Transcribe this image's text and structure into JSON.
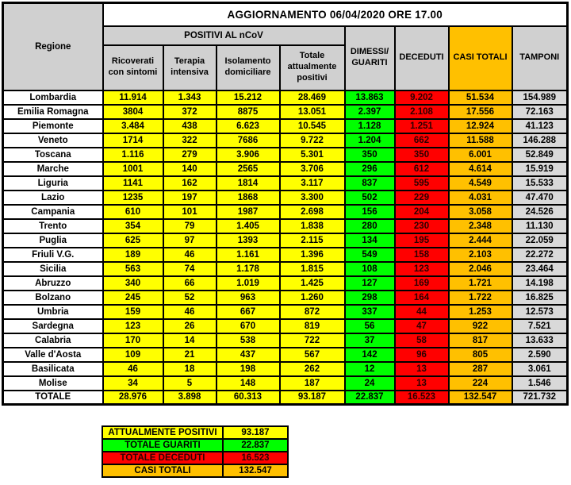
{
  "colors": {
    "yellow": "#ffff00",
    "green": "#00ff00",
    "red": "#ff0000",
    "orange": "#ffc000",
    "tamponi_gray": "#d9d9d9",
    "header_gray": "#d0d0d0",
    "red_cell_text": "#2b0000",
    "border": "#000000"
  },
  "chart_data": {
    "type": "table",
    "title": "AGGIORNAMENTO 06/04/2020 ORE 17.00",
    "region_column_header": "Regione",
    "group_header": "POSITIVI AL nCoV",
    "columns": [
      "Ricoverati con sintomi",
      "Terapia intensiva",
      "Isolamento domiciliare",
      "Totale attualmente positivi",
      "DIMESSI/ GUARITI",
      "DECEDUTI",
      "CASI TOTALI",
      "TAMPONI"
    ],
    "column_colors": [
      "yellow",
      "yellow",
      "yellow",
      "yellow",
      "green",
      "red",
      "orange",
      "gray"
    ],
    "rows": [
      {
        "region": "Lombardia",
        "values": [
          "11.914",
          "1.343",
          "15.212",
          "28.469",
          "13.863",
          "9.202",
          "51.534",
          "154.989"
        ]
      },
      {
        "region": "Emilia Romagna",
        "values": [
          "3804",
          "372",
          "8875",
          "13.051",
          "2.397",
          "2.108",
          "17.556",
          "72.163"
        ]
      },
      {
        "region": "Piemonte",
        "values": [
          "3.484",
          "438",
          "6.623",
          "10.545",
          "1.128",
          "1.251",
          "12.924",
          "41.123"
        ]
      },
      {
        "region": "Veneto",
        "values": [
          "1714",
          "322",
          "7686",
          "9.722",
          "1.204",
          "662",
          "11.588",
          "146.288"
        ]
      },
      {
        "region": "Toscana",
        "values": [
          "1.116",
          "279",
          "3.906",
          "5.301",
          "350",
          "350",
          "6.001",
          "52.849"
        ]
      },
      {
        "region": "Marche",
        "values": [
          "1001",
          "140",
          "2565",
          "3.706",
          "296",
          "612",
          "4.614",
          "15.919"
        ]
      },
      {
        "region": "Liguria",
        "values": [
          "1141",
          "162",
          "1814",
          "3.117",
          "837",
          "595",
          "4.549",
          "15.533"
        ]
      },
      {
        "region": "Lazio",
        "values": [
          "1235",
          "197",
          "1868",
          "3.300",
          "502",
          "229",
          "4.031",
          "47.470"
        ]
      },
      {
        "region": "Campania",
        "values": [
          "610",
          "101",
          "1987",
          "2.698",
          "156",
          "204",
          "3.058",
          "24.526"
        ]
      },
      {
        "region": "Trento",
        "values": [
          "354",
          "79",
          "1.405",
          "1.838",
          "280",
          "230",
          "2.348",
          "11.130"
        ]
      },
      {
        "region": "Puglia",
        "values": [
          "625",
          "97",
          "1393",
          "2.115",
          "134",
          "195",
          "2.444",
          "22.059"
        ]
      },
      {
        "region": "Friuli V.G.",
        "values": [
          "189",
          "46",
          "1.161",
          "1.396",
          "549",
          "158",
          "2.103",
          "22.272"
        ]
      },
      {
        "region": "Sicilia",
        "values": [
          "563",
          "74",
          "1.178",
          "1.815",
          "108",
          "123",
          "2.046",
          "23.464"
        ]
      },
      {
        "region": "Abruzzo",
        "values": [
          "340",
          "66",
          "1.019",
          "1.425",
          "127",
          "169",
          "1.721",
          "14.198"
        ]
      },
      {
        "region": "Bolzano",
        "values": [
          "245",
          "52",
          "963",
          "1.260",
          "298",
          "164",
          "1.722",
          "16.825"
        ]
      },
      {
        "region": "Umbria",
        "values": [
          "159",
          "46",
          "667",
          "872",
          "337",
          "44",
          "1.253",
          "12.573"
        ]
      },
      {
        "region": "Sardegna",
        "values": [
          "123",
          "26",
          "670",
          "819",
          "56",
          "47",
          "922",
          "7.521"
        ]
      },
      {
        "region": "Calabria",
        "values": [
          "170",
          "14",
          "538",
          "722",
          "37",
          "58",
          "817",
          "13.633"
        ]
      },
      {
        "region": "Valle d'Aosta",
        "values": [
          "109",
          "21",
          "437",
          "567",
          "142",
          "96",
          "805",
          "2.590"
        ]
      },
      {
        "region": "Basilicata",
        "values": [
          "46",
          "18",
          "198",
          "262",
          "12",
          "13",
          "287",
          "3.061"
        ]
      },
      {
        "region": "Molise",
        "values": [
          "34",
          "5",
          "148",
          "187",
          "24",
          "13",
          "224",
          "1.546"
        ]
      }
    ],
    "total": {
      "region": "TOTALE",
      "values": [
        "28.976",
        "3.898",
        "60.313",
        "93.187",
        "22.837",
        "16.523",
        "132.547",
        "721.732"
      ]
    },
    "legend": [
      {
        "label": "ATTUALMENTE POSITIVI",
        "value": "93.187",
        "color": "#ffff00",
        "dark_text": false
      },
      {
        "label": "TOTALE GUARITI",
        "value": "22.837",
        "color": "#00ff00",
        "dark_text": false
      },
      {
        "label": "TOTALE DECEDUTI",
        "value": "16.523",
        "color": "#ff0000",
        "dark_text": true
      },
      {
        "label": "CASI TOTALI",
        "value": "132.547",
        "color": "#ffc000",
        "dark_text": false
      }
    ]
  }
}
